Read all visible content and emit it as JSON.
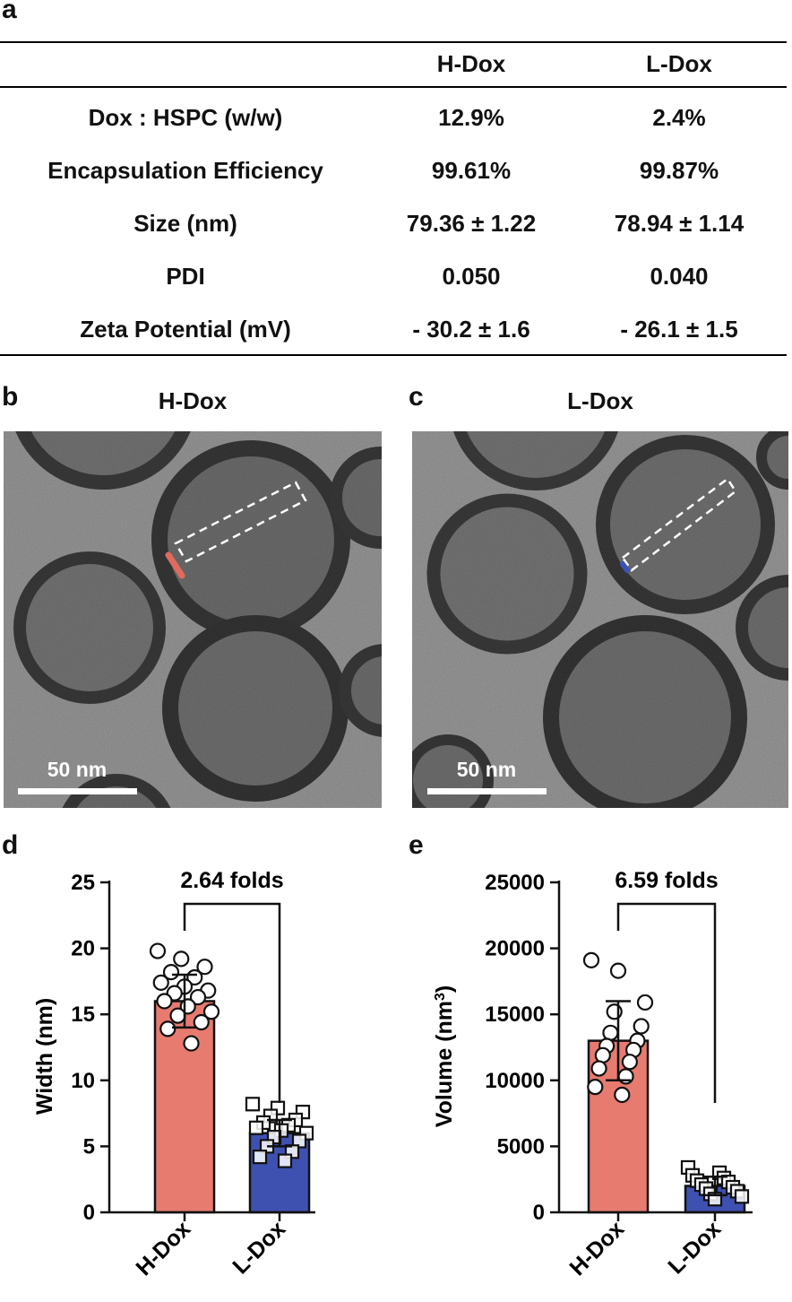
{
  "panel_labels": {
    "a": "a",
    "b": "b",
    "c": "c",
    "d": "d",
    "e": "e"
  },
  "table": {
    "columns": [
      "",
      "H-Dox",
      "L-Dox"
    ],
    "rows": [
      {
        "label": "Dox : HSPC (w/w)",
        "h": "12.9%",
        "l": "2.4%"
      },
      {
        "label": "Encapsulation Efficiency",
        "h": "99.61%",
        "l": "99.87%"
      },
      {
        "label": "Size (nm)",
        "h": "79.36 ± 1.22",
        "l": "78.94 ± 1.14"
      },
      {
        "label": "PDI",
        "h": "0.050",
        "l": "0.040"
      },
      {
        "label": "Zeta Potential (mV)",
        "h": "- 30.2 ± 1.6",
        "l": "- 26.1 ± 1.5"
      }
    ]
  },
  "micrographs": {
    "b": {
      "title": "H-Dox",
      "scale_bar": "50 nm",
      "highlight_color": "#e06a5e"
    },
    "c": {
      "title": "L-Dox",
      "scale_bar": "50 nm",
      "highlight_color": "#3d52b8"
    }
  },
  "chart_data": [
    {
      "type": "bar",
      "panel": "d",
      "categories": [
        "H-Dox",
        "L-Dox"
      ],
      "values": [
        16.0,
        6.0
      ],
      "error": [
        2.0,
        1.0
      ],
      "ylabel": "Width (nm)",
      "ylim": [
        0,
        25
      ],
      "yticks": [
        "0",
        "5",
        "10",
        "15",
        "20",
        "25"
      ],
      "annotation": "2.64 folds",
      "colors": [
        "#e77b70",
        "#3f51b0"
      ],
      "points": {
        "H-Dox": [
          19.8,
          19.2,
          18.6,
          18.2,
          17.8,
          17.4,
          17.1,
          16.8,
          16.6,
          16.3,
          16.0,
          15.6,
          15.2,
          14.9,
          14.4,
          13.9,
          12.8
        ],
        "L-Dox": [
          8.2,
          7.9,
          7.6,
          7.3,
          7.0,
          6.8,
          6.6,
          6.4,
          6.2,
          6.0,
          5.7,
          5.4,
          5.0,
          4.6,
          4.2,
          3.9
        ]
      }
    },
    {
      "type": "bar",
      "panel": "e",
      "categories": [
        "H-Dox",
        "L-Dox"
      ],
      "values": [
        13000,
        2000
      ],
      "error": [
        3000,
        700
      ],
      "ylabel": "Volume (nm",
      "ylabel_sup": "3",
      "ylabel_tail": ")",
      "ylim": [
        0,
        25000
      ],
      "yticks": [
        "0",
        "5000",
        "10000",
        "15000",
        "20000",
        "25000"
      ],
      "annotation": "6.59 folds",
      "colors": [
        "#e77b70",
        "#3f51b0"
      ],
      "points": {
        "H-Dox": [
          19100,
          18300,
          15900,
          15200,
          14100,
          13600,
          13000,
          12600,
          12300,
          11900,
          11400,
          10900,
          10300,
          9500,
          8900
        ],
        "L-Dox": [
          3400,
          3000,
          2800,
          2600,
          2400,
          2300,
          2100,
          1900,
          1800,
          1600,
          1400,
          1200,
          1000
        ]
      }
    }
  ]
}
